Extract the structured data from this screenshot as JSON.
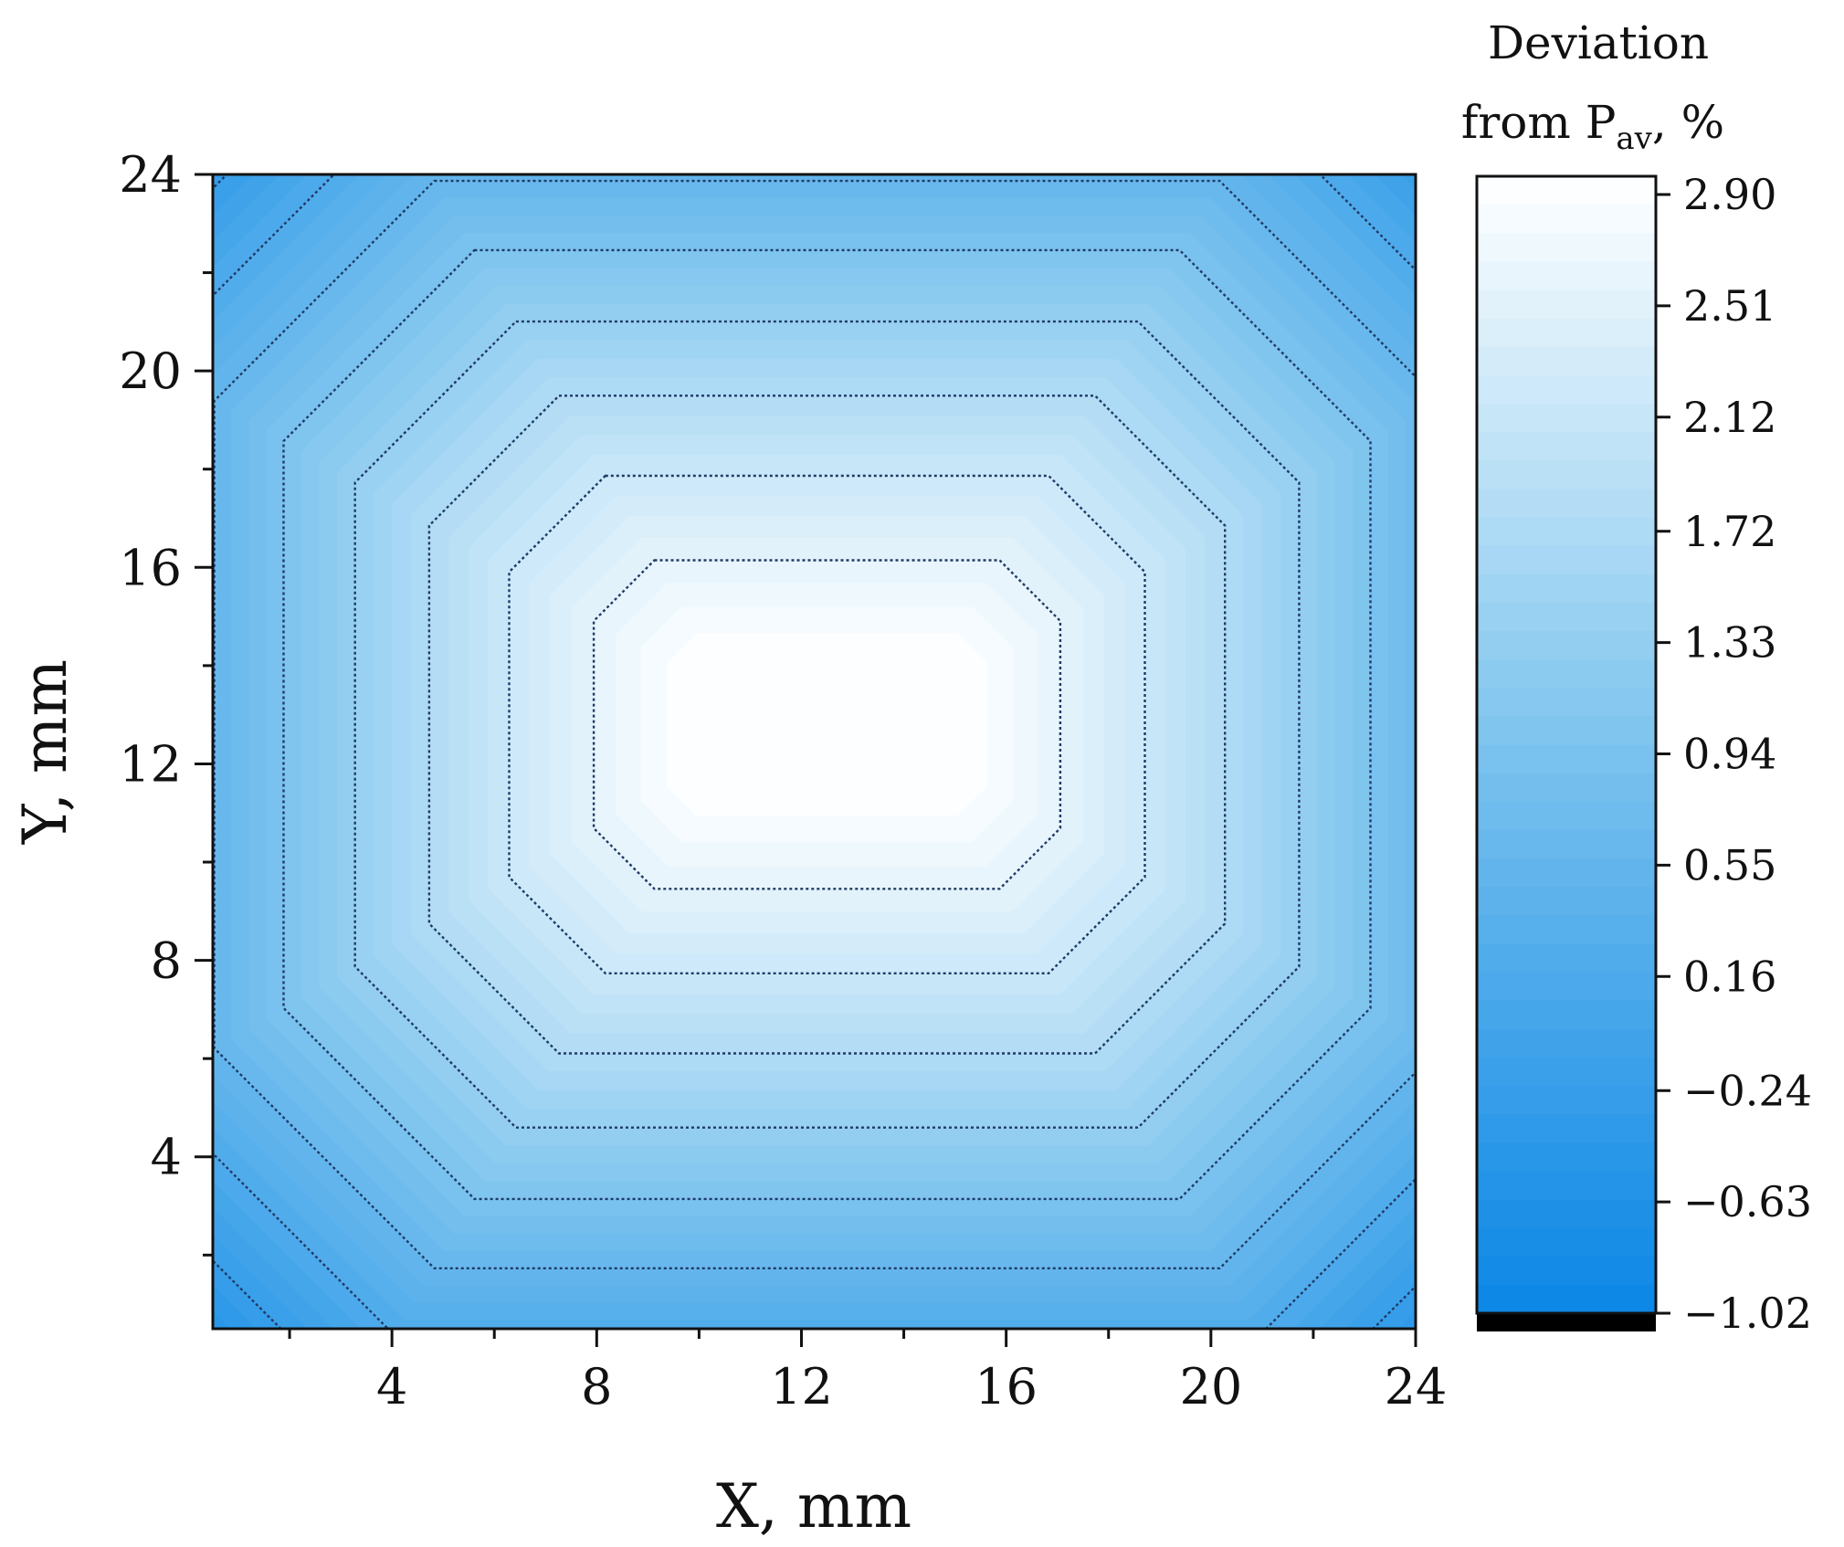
{
  "chart_data": {
    "type": "heatmap",
    "title": "",
    "xlabel": "X, mm",
    "ylabel": "Y, mm",
    "xlim": [
      0.5,
      24
    ],
    "ylim": [
      0.5,
      24
    ],
    "x_ticks": [
      4,
      8,
      12,
      16,
      20,
      24
    ],
    "y_ticks": [
      4,
      8,
      12,
      16,
      20,
      24
    ],
    "x_ticks_minor": [
      2,
      6,
      10,
      14,
      18,
      22
    ],
    "y_ticks_minor": [
      2,
      6,
      10,
      14,
      18,
      22
    ],
    "grid": false,
    "field": {
      "center_x": 12.5,
      "center_y": 12.8,
      "plateau_half_width_x": 2.5,
      "plateau_half_width_y": 1.2,
      "max": 2.9,
      "min": -1.02
    },
    "contour_levels": [
      2.51,
      2.12,
      1.72,
      1.33,
      0.94,
      0.55,
      0.16,
      -0.24,
      -0.63
    ],
    "colorbar": {
      "title_line1": "Deviation",
      "title_line2_prefix": "from P",
      "title_line2_sub": "av",
      "title_line2_suffix": ", %",
      "ticks": [
        "2.90",
        "2.51",
        "2.12",
        "1.72",
        "1.33",
        "0.94",
        "0.55",
        "0.16",
        "−0.24",
        "−0.63",
        "−1.02"
      ],
      "tick_values": [
        2.9,
        2.51,
        2.12,
        1.72,
        1.33,
        0.94,
        0.55,
        0.16,
        -0.24,
        -0.63,
        -1.02
      ],
      "color_high": "#ffffff",
      "color_mid": "#7cc3ee",
      "color_low": "#0a86e6",
      "underflow_color": "#000000"
    }
  }
}
